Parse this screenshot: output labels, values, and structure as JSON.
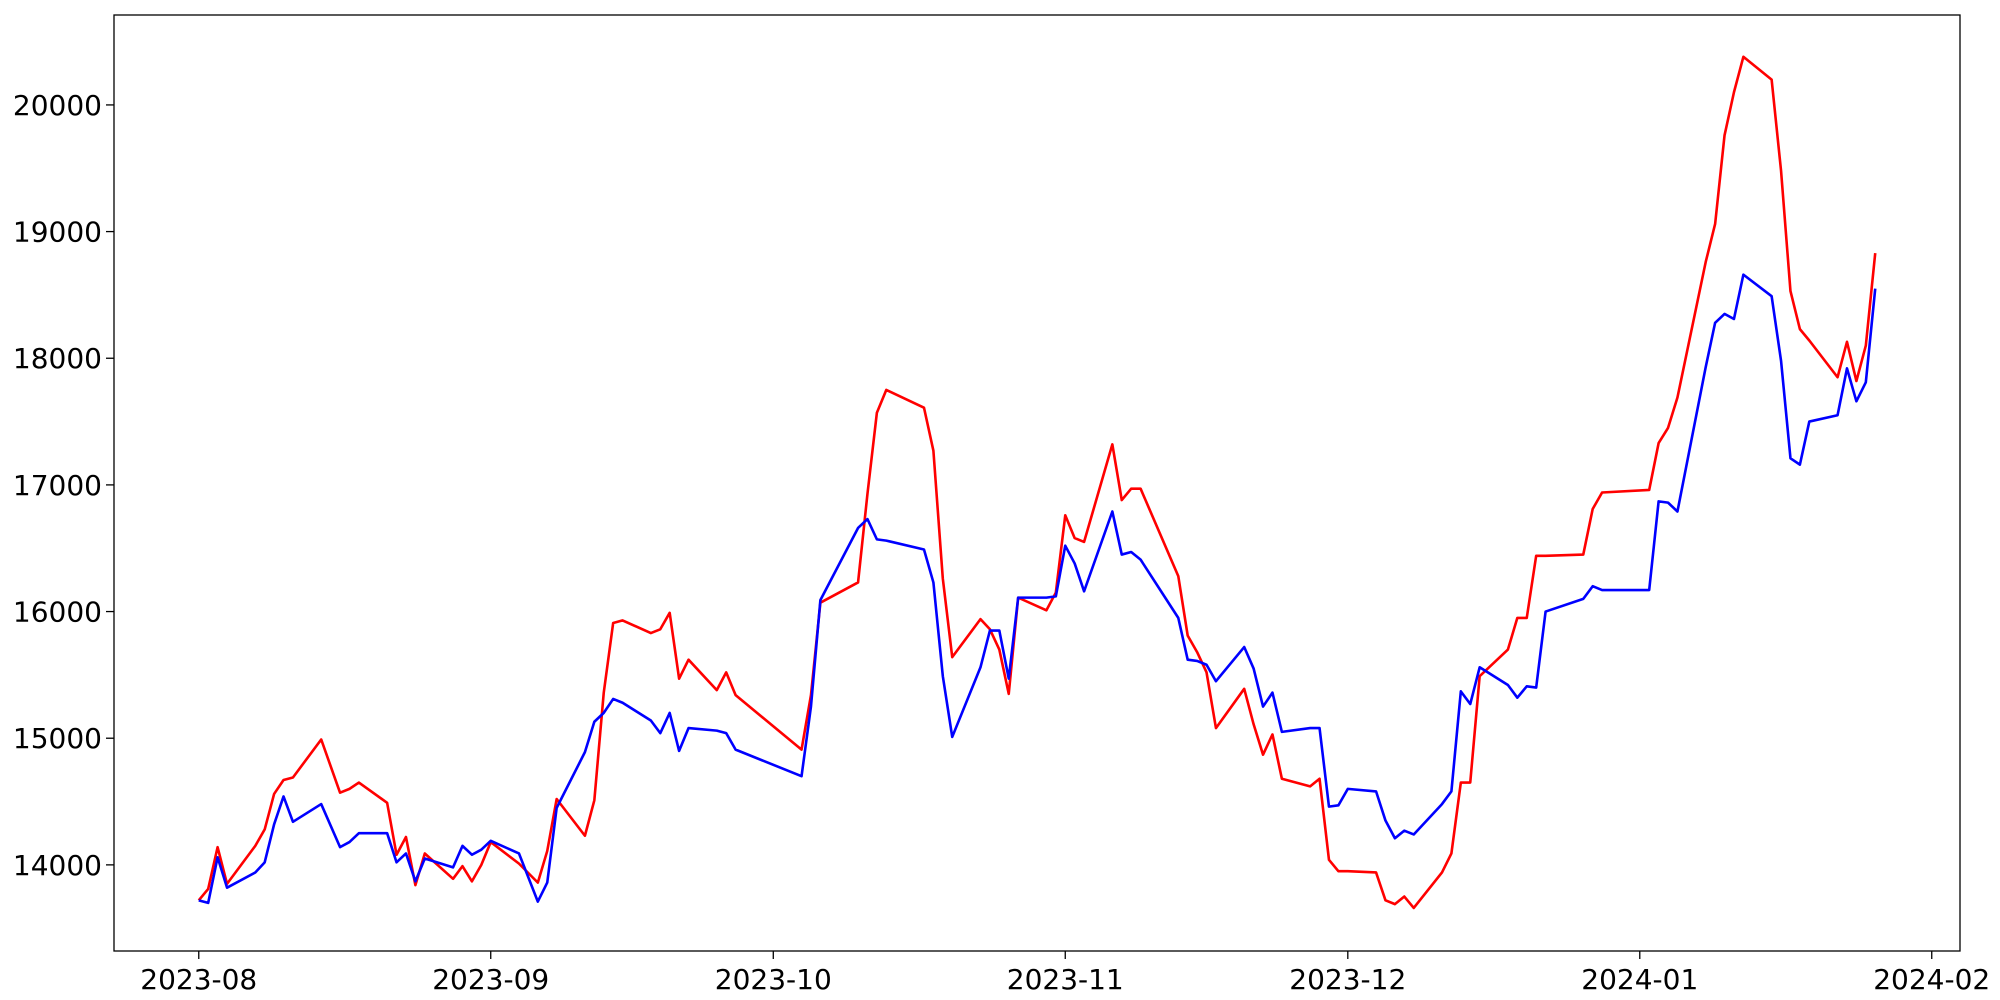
{
  "chart_data": {
    "type": "line",
    "x": [
      "2023-08-01",
      "2023-08-02",
      "2023-08-03",
      "2023-08-04",
      "2023-08-07",
      "2023-08-08",
      "2023-08-09",
      "2023-08-10",
      "2023-08-11",
      "2023-08-14",
      "2023-08-16",
      "2023-08-17",
      "2023-08-18",
      "2023-08-21",
      "2023-08-22",
      "2023-08-23",
      "2023-08-24",
      "2023-08-25",
      "2023-08-28",
      "2023-08-29",
      "2023-08-30",
      "2023-08-31",
      "2023-09-01",
      "2023-09-04",
      "2023-09-06",
      "2023-09-07",
      "2023-09-08",
      "2023-09-11",
      "2023-09-12",
      "2023-09-13",
      "2023-09-14",
      "2023-09-15",
      "2023-09-18",
      "2023-09-19",
      "2023-09-20",
      "2023-09-21",
      "2023-09-22",
      "2023-09-25",
      "2023-09-26",
      "2023-09-27",
      "2023-10-04",
      "2023-10-05",
      "2023-10-06",
      "2023-10-10",
      "2023-10-11",
      "2023-10-12",
      "2023-10-13",
      "2023-10-17",
      "2023-10-18",
      "2023-10-19",
      "2023-10-20",
      "2023-10-23",
      "2023-10-24",
      "2023-10-25",
      "2023-10-26",
      "2023-10-27",
      "2023-10-30",
      "2023-10-31",
      "2023-11-01",
      "2023-11-02",
      "2023-11-03",
      "2023-11-06",
      "2023-11-07",
      "2023-11-08",
      "2023-11-09",
      "2023-11-13",
      "2023-11-14",
      "2023-11-15",
      "2023-11-16",
      "2023-11-17",
      "2023-11-20",
      "2023-11-21",
      "2023-11-22",
      "2023-11-23",
      "2023-11-24",
      "2023-11-27",
      "2023-11-28",
      "2023-11-29",
      "2023-11-30",
      "2023-12-01",
      "2023-12-04",
      "2023-12-05",
      "2023-12-06",
      "2023-12-07",
      "2023-12-08",
      "2023-12-11",
      "2023-12-12",
      "2023-12-13",
      "2023-12-14",
      "2023-12-15",
      "2023-12-18",
      "2023-12-19",
      "2023-12-20",
      "2023-12-21",
      "2023-12-22",
      "2023-12-26",
      "2023-12-27",
      "2023-12-28",
      "2024-01-02",
      "2024-01-03",
      "2024-01-04",
      "2024-01-05",
      "2024-01-08",
      "2024-01-09",
      "2024-01-10",
      "2024-01-11",
      "2024-01-12",
      "2024-01-15",
      "2024-01-16",
      "2024-01-17",
      "2024-01-18",
      "2024-01-19",
      "2024-01-22",
      "2024-01-23",
      "2024-01-24",
      "2024-01-25",
      "2024-01-26"
    ],
    "series": [
      {
        "color": "#ff0000",
        "values": [
          13720,
          13810,
          14140,
          13850,
          14150,
          14280,
          14560,
          14670,
          14690,
          14990,
          14570,
          14600,
          14650,
          14490,
          14080,
          14220,
          13840,
          14090,
          13890,
          13990,
          13870,
          14000,
          14180,
          14010,
          13860,
          14110,
          14520,
          14230,
          14510,
          15360,
          15910,
          15930,
          15830,
          15860,
          15990,
          15470,
          15620,
          15380,
          15520,
          15340,
          14910,
          15340,
          16070,
          16230,
          16930,
          17570,
          17750,
          17610,
          17270,
          16260,
          15640,
          15940,
          15860,
          15700,
          15350,
          16110,
          16010,
          16150,
          16760,
          16580,
          16550,
          17320,
          16880,
          16970,
          16970,
          16280,
          15810,
          15680,
          15520,
          15080,
          15390,
          15110,
          14870,
          15030,
          14680,
          14620,
          14680,
          14040,
          13950,
          13950,
          13940,
          13720,
          13690,
          13750,
          13660,
          13940,
          14090,
          14650,
          14650,
          15490,
          15700,
          15950,
          15950,
          16440,
          16440,
          16450,
          16810,
          16940,
          16960,
          17330,
          17450,
          17690,
          18760,
          19060,
          19760,
          20100,
          20380,
          20200,
          19480,
          18530,
          18230,
          18140,
          17850,
          18130,
          17820,
          18100,
          18830
        ]
      },
      {
        "color": "#0000ff",
        "values": [
          13720,
          13700,
          14060,
          13820,
          13940,
          14020,
          14320,
          14540,
          14340,
          14480,
          14140,
          14180,
          14250,
          14250,
          14020,
          14090,
          13870,
          14050,
          13980,
          14150,
          14080,
          14120,
          14190,
          14090,
          13710,
          13860,
          14450,
          14890,
          15130,
          15200,
          15310,
          15280,
          15140,
          15040,
          15200,
          14900,
          15080,
          15060,
          15040,
          14910,
          14700,
          15250,
          16090,
          16660,
          16730,
          16570,
          16560,
          16490,
          16230,
          15490,
          15010,
          15560,
          15850,
          15850,
          15470,
          16110,
          16110,
          16120,
          16520,
          16380,
          16160,
          16790,
          16450,
          16470,
          16410,
          15950,
          15620,
          15610,
          15580,
          15450,
          15720,
          15550,
          15250,
          15360,
          15050,
          15080,
          15080,
          14460,
          14470,
          14600,
          14580,
          14350,
          14210,
          14270,
          14240,
          14480,
          14580,
          15370,
          15270,
          15560,
          15420,
          15320,
          15410,
          15400,
          16000,
          16100,
          16200,
          16170,
          16170,
          16870,
          16860,
          16790,
          17930,
          18280,
          18350,
          18310,
          18660,
          18490,
          17980,
          17210,
          17160,
          17500,
          17550,
          17920,
          17660,
          17810,
          18550
        ]
      }
    ],
    "xlim": [
      "2023-07-23",
      "2024-02-04"
    ],
    "xticks": [
      {
        "value": "2023-08-01",
        "label": "2023-08"
      },
      {
        "value": "2023-09-01",
        "label": "2023-09"
      },
      {
        "value": "2023-10-01",
        "label": "2023-10"
      },
      {
        "value": "2023-11-01",
        "label": "2023-11"
      },
      {
        "value": "2023-12-01",
        "label": "2023-12"
      },
      {
        "value": "2024-01-01",
        "label": "2024-01"
      },
      {
        "value": "2024-02-01",
        "label": "2024-02"
      }
    ],
    "ylim": [
      13320,
      20710
    ],
    "yticks": [
      14000,
      15000,
      16000,
      17000,
      18000,
      19000,
      20000
    ],
    "grid": false
  }
}
